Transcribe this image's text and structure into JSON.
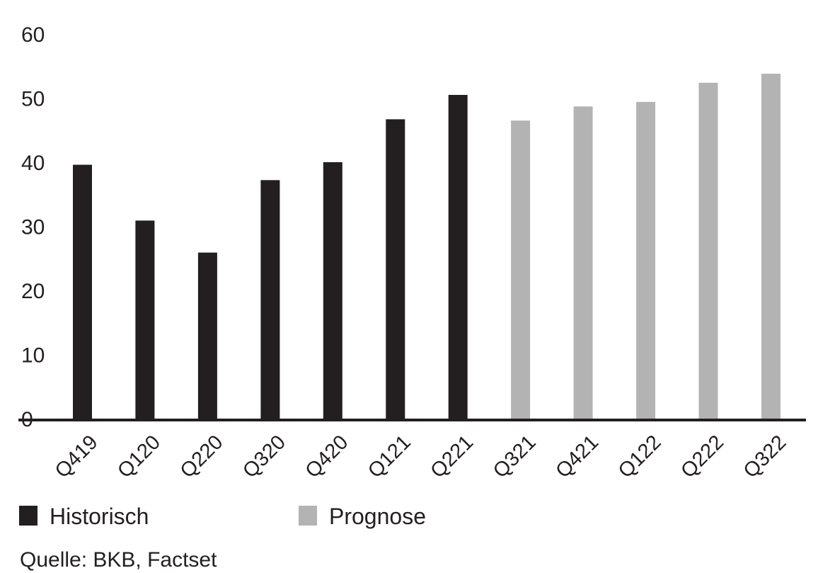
{
  "chart_data": {
    "type": "bar",
    "categories": [
      "Q419",
      "Q120",
      "Q220",
      "Q320",
      "Q420",
      "Q121",
      "Q221",
      "Q321",
      "Q421",
      "Q122",
      "Q222",
      "Q322"
    ],
    "series": [
      {
        "name": "Historisch",
        "values": [
          39.6,
          30.9,
          25.9,
          37.2,
          40.0,
          46.7,
          50.5,
          null,
          null,
          null,
          null,
          null
        ],
        "color": "#231f20"
      },
      {
        "name": "Prognose",
        "values": [
          null,
          null,
          null,
          null,
          null,
          null,
          null,
          46.5,
          48.7,
          49.4,
          52.4,
          53.8
        ],
        "color": "#b3b3b3"
      }
    ],
    "ylim": [
      0,
      60
    ],
    "yticks": [
      "0",
      "10",
      "20",
      "30",
      "40",
      "50",
      "60"
    ],
    "grid": false,
    "legend": "bottom-left",
    "source": "Quelle: BKB, Factset"
  }
}
